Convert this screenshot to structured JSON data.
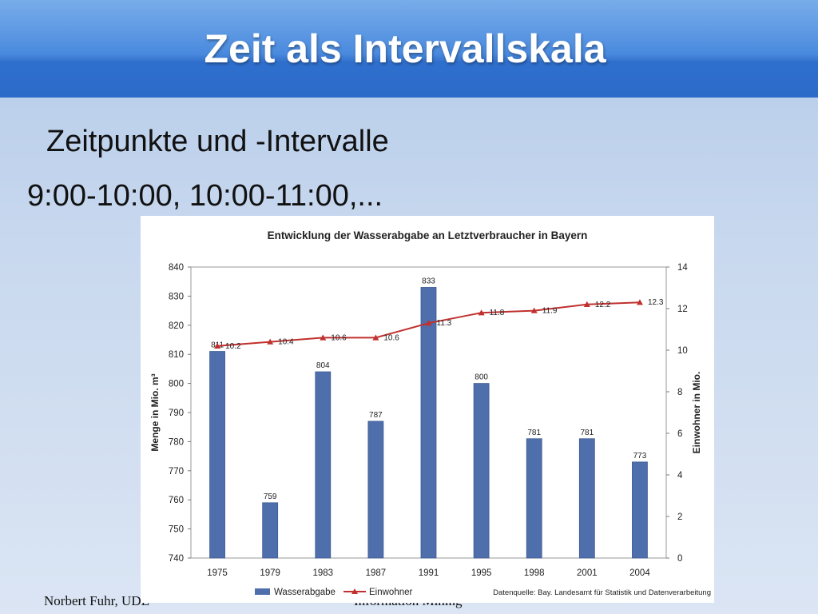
{
  "slide": {
    "title": "Zeit als Intervallskala",
    "bullets": [
      {
        "glyph": "",
        "text": "Zeitpunkte und -Intervalle"
      },
      {
        "glyph": "",
        "text": "9:00-10:00, 10:00-11:00,..."
      }
    ],
    "footer_left": "Norbert Fuhr, UDE",
    "footer_center": "Information Mining"
  },
  "chart_data": {
    "type": "bar",
    "title": "Entwicklung der Wasserabgabe an Letztverbraucher in Bayern",
    "categories": [
      "1975",
      "1979",
      "1983",
      "1987",
      "1991",
      "1995",
      "1998",
      "2001",
      "2004"
    ],
    "series": [
      {
        "name": "Wasserabgabe",
        "type": "bar",
        "axis": "left",
        "color": "#4f6fac",
        "values": [
          811,
          759,
          804,
          787,
          833,
          800,
          781,
          781,
          773
        ]
      },
      {
        "name": "Einwohner",
        "type": "line",
        "axis": "right",
        "color": "#c0302e",
        "values": [
          10.2,
          10.4,
          10.6,
          10.6,
          11.3,
          11.8,
          11.9,
          12.2,
          12.3
        ]
      }
    ],
    "ylabel": "Menge in Mio. m³",
    "ylabel_right": "Einwohner in Mio.",
    "ylim": [
      740,
      840
    ],
    "yticks": [
      740,
      750,
      760,
      770,
      780,
      790,
      800,
      810,
      820,
      830,
      840
    ],
    "ylim_right": [
      0,
      14
    ],
    "yticks_right": [
      0,
      2,
      4,
      6,
      8,
      10,
      12,
      14
    ],
    "grid": false,
    "legend_position": "bottom-left",
    "source": "Datenquelle: Bay. Landesamt für Statistik und Datenverarbeitung"
  }
}
